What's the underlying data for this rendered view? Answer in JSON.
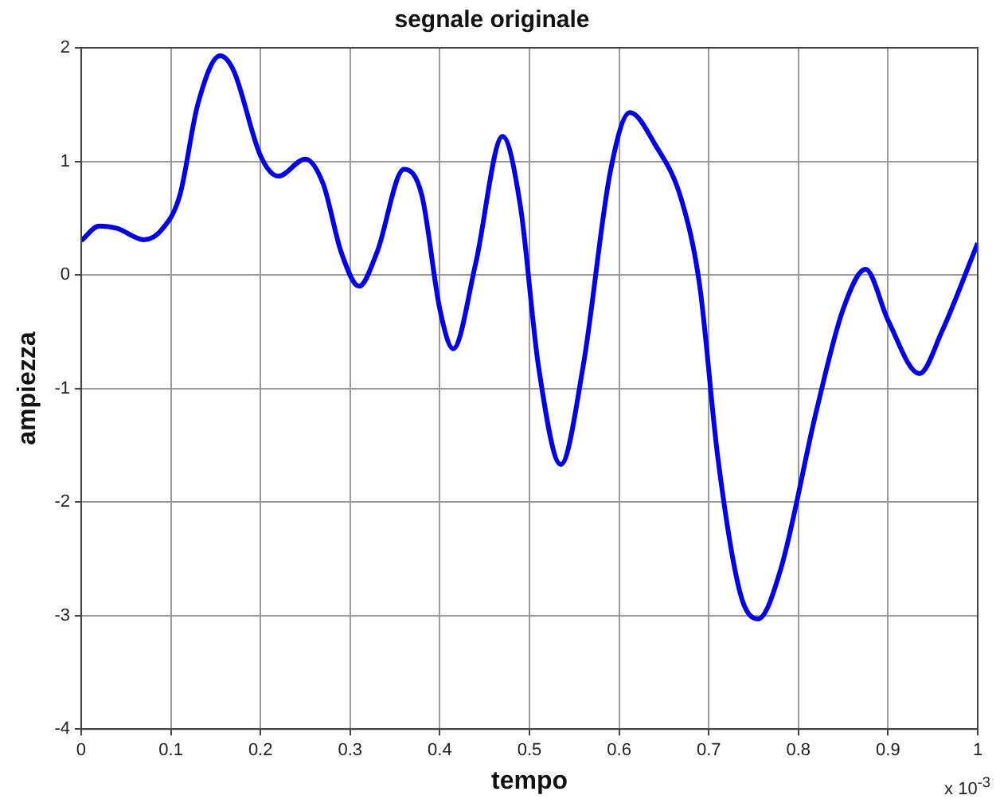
{
  "chart_data": {
    "type": "line",
    "title": "segnale originale",
    "xlabel": "tempo",
    "ylabel": "ampiezza",
    "annotations": [
      "x 10$^{-3}$"
    ],
    "series": [
      {
        "color": "#0000ee",
        "x": [
          0,
          0.02,
          0.04,
          0.07,
          0.09,
          0.11,
          0.13,
          0.155,
          0.17,
          0.2,
          0.22,
          0.25,
          0.27,
          0.29,
          0.31,
          0.33,
          0.36,
          0.38,
          0.4,
          0.415,
          0.44,
          0.47,
          0.49,
          0.51,
          0.535,
          0.56,
          0.59,
          0.612,
          0.64,
          0.67,
          0.69,
          0.71,
          0.735,
          0.755,
          0.78,
          0.82,
          0.85,
          0.875,
          0.9,
          0.935,
          0.96,
          1
        ],
        "values": [
          0.3,
          0.43,
          0.41,
          0.31,
          0.4,
          0.7,
          1.5,
          1.93,
          1.8,
          1.05,
          0.87,
          1.02,
          0.8,
          0.2,
          -0.1,
          0.2,
          0.93,
          0.7,
          -0.3,
          -0.65,
          0.1,
          1.22,
          0.6,
          -0.8,
          -1.67,
          -0.8,
          0.9,
          1.43,
          1.15,
          0.65,
          -0.1,
          -1.6,
          -2.8,
          -3.03,
          -2.6,
          -1.2,
          -0.3,
          0.05,
          -0.4,
          -0.87,
          -0.5,
          0.28
        ]
      }
    ],
    "xlim": [
      0,
      1
    ],
    "xticks": [
      0,
      0.1,
      0.2,
      0.3,
      0.4,
      0.5,
      0.6,
      0.7,
      0.8,
      0.9,
      1
    ],
    "ylim": [
      -4,
      2
    ],
    "yticks": [
      -4,
      -3,
      -2,
      -1,
      0,
      1,
      2
    ],
    "grid": true,
    "legend": false,
    "marker": "none",
    "line_style": "solid"
  }
}
